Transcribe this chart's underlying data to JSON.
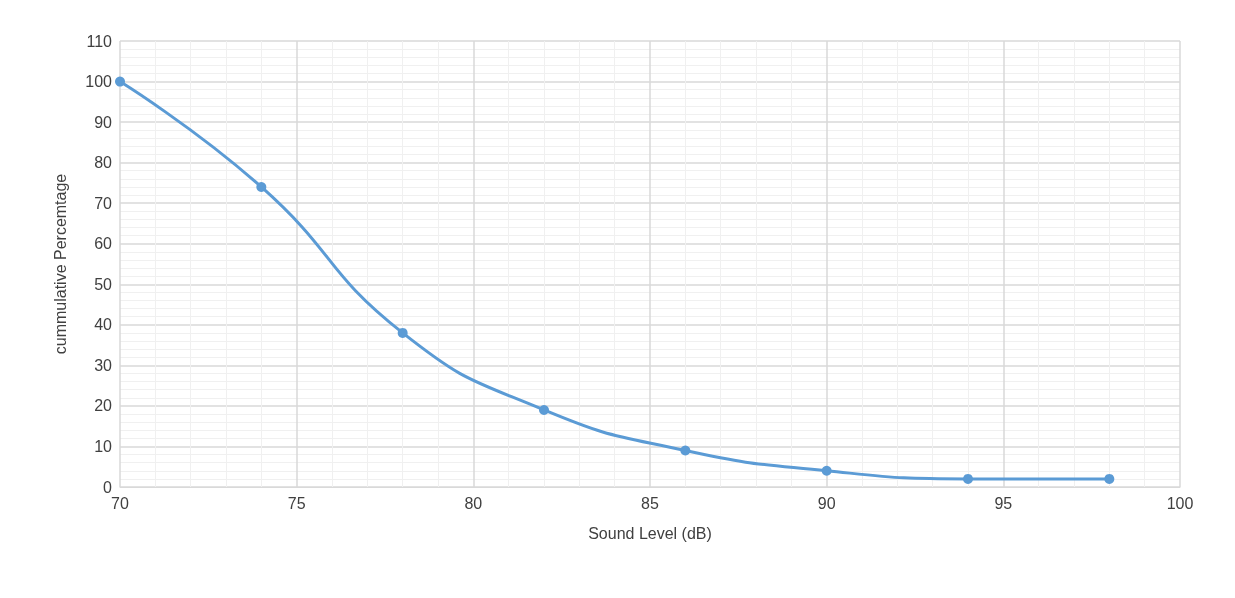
{
  "chart_data": {
    "type": "line",
    "xlabel": "Sound Level (dB)",
    "ylabel": "cummulative Percemtage",
    "x": [
      70,
      74,
      78,
      82,
      86,
      90,
      94,
      98
    ],
    "series": [
      {
        "color": "#5b9bd5",
        "values": [
          100,
          74,
          38,
          19,
          9,
          4,
          2,
          2
        ]
      }
    ],
    "xlim": [
      70,
      100
    ],
    "xticks": [
      70,
      75,
      80,
      85,
      90,
      95,
      100
    ],
    "ylim": [
      0,
      110
    ],
    "yticks": [
      0,
      10,
      20,
      30,
      40,
      50,
      60,
      70,
      80,
      90,
      100,
      110
    ],
    "grid": true,
    "marker": "circle",
    "line_style": "solid"
  }
}
